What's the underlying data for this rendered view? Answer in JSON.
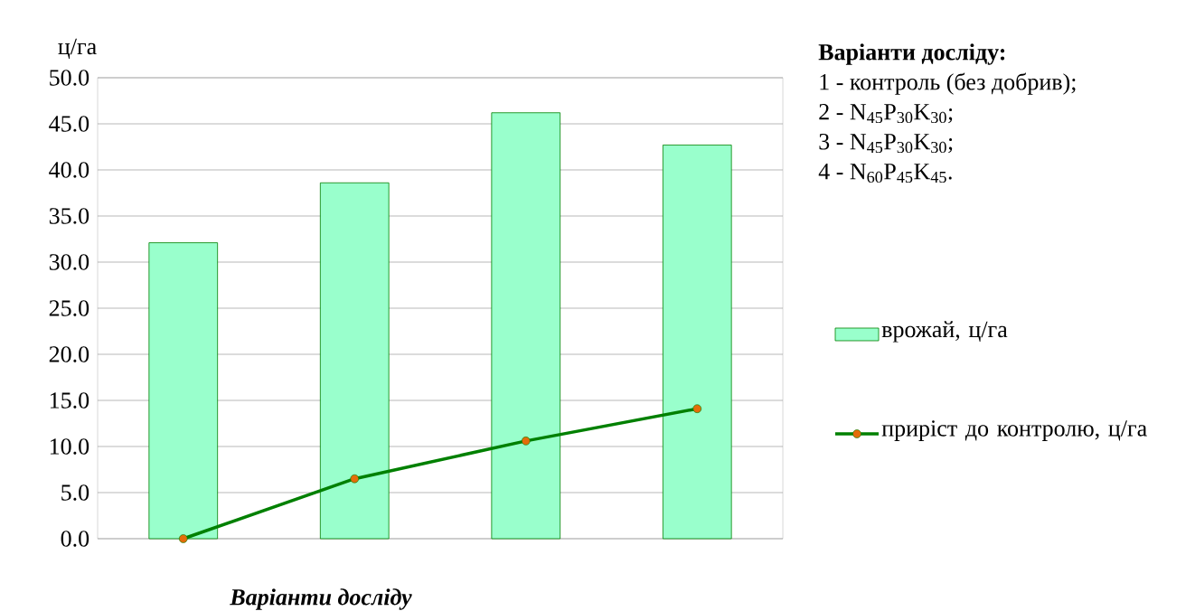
{
  "chart_data": {
    "type": "bar",
    "xlabel": "Варіанти досліду",
    "ylabel": "ц/га",
    "categories": [
      null,
      null,
      null,
      null
    ],
    "series": [
      {
        "name": "врожай, ц/га",
        "type": "bar",
        "color": "#99ffcc",
        "values": [
          32.1,
          38.6,
          46.2,
          42.7
        ]
      },
      {
        "name": "приріст до контролю, ц/га",
        "type": "line",
        "color": "#008000",
        "values": [
          0,
          6.5,
          10.6,
          14.1
        ]
      }
    ],
    "ylim": [
      0,
      50
    ],
    "yticks": [
      {
        "value": 0,
        "label": "0.0"
      },
      {
        "value": 5,
        "label": "5.0"
      },
      {
        "value": 10,
        "label": "10.0"
      },
      {
        "value": 15,
        "label": "15.0"
      },
      {
        "value": 20,
        "label": "20.0"
      },
      {
        "value": 25,
        "label": "25.0"
      },
      {
        "value": 30,
        "label": "30.0"
      },
      {
        "value": 35,
        "label": "35.0"
      },
      {
        "value": 40,
        "label": "40.0"
      },
      {
        "value": 45,
        "label": "45.0"
      },
      {
        "value": 50,
        "label": "50.0"
      }
    ],
    "grid": "y",
    "legend": "right",
    "marker": "circle",
    "annotations": [
      "Варіанти досліду:",
      "1 - контроль  (без добрив);",
      "2 - N$_{45}$P$_{30}$K$_{30}$;",
      "3 - N$_{45}$P$_{30}$K$_{30}$;",
      "4 - N$_{60}$P$_{45}$K$_{45}$."
    ]
  }
}
